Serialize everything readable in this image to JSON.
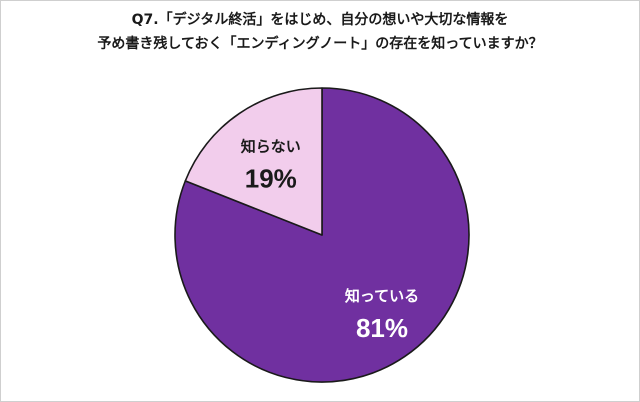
{
  "title_line1": "Q7.「デジタル終活」をはじめ、自分の想いや大切な情報を",
  "title_line2": "予め書き残しておく「エンディングノート」の存在を知っていますか？",
  "chart_data": {
    "type": "pie",
    "start_angle_deg": 0,
    "direction": "clockwise",
    "slices": [
      {
        "label": "知っている",
        "value": 81,
        "value_label": "81%",
        "color": "#7030a0",
        "label_color": "#ffffff"
      },
      {
        "label": "知らない",
        "value": 19,
        "value_label": "19%",
        "color": "#f2cdec",
        "label_color": "#1a1a1a"
      }
    ]
  }
}
